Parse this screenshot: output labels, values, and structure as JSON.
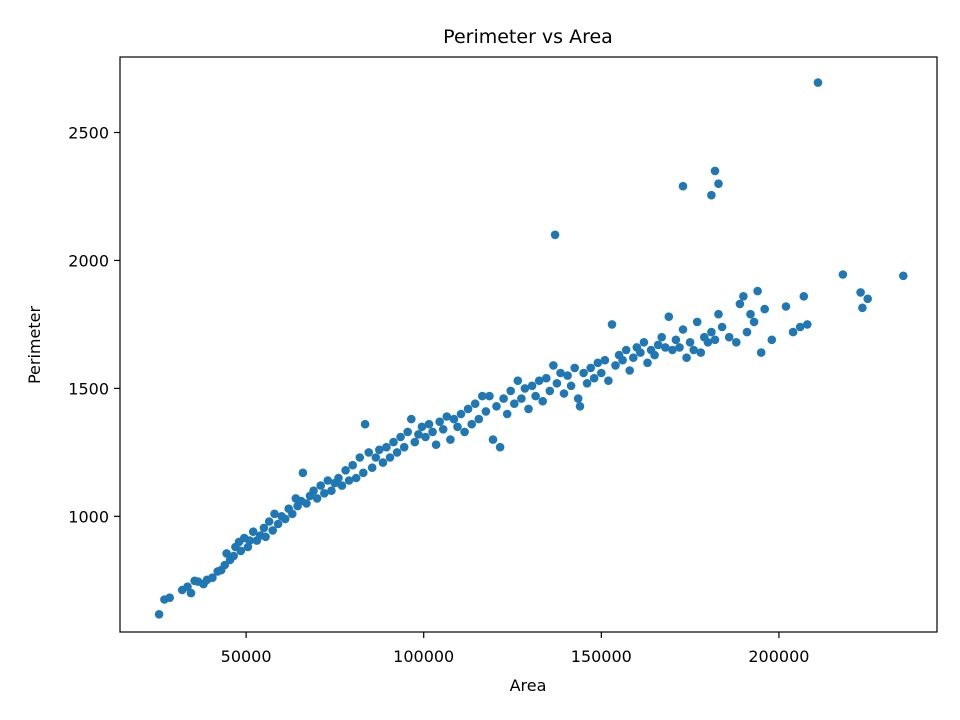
{
  "chart_data": {
    "type": "scatter",
    "title": "Perimeter vs Area",
    "xlabel": "Area",
    "ylabel": "Perimeter",
    "xlim": [
      14500,
      244500
    ],
    "ylim": [
      548,
      2795
    ],
    "xticks": [
      50000,
      100000,
      150000,
      200000
    ],
    "yticks": [
      1000,
      1500,
      2000,
      2500
    ],
    "grid": false,
    "color": "#1f77b4",
    "series": [
      {
        "points": [
          [
            25500,
            617
          ],
          [
            27000,
            675
          ],
          [
            28500,
            682
          ],
          [
            32000,
            712
          ],
          [
            33500,
            725
          ],
          [
            34500,
            700
          ],
          [
            35500,
            748
          ],
          [
            36500,
            745
          ],
          [
            38000,
            735
          ],
          [
            39000,
            752
          ],
          [
            40500,
            760
          ],
          [
            42000,
            785
          ],
          [
            43000,
            790
          ],
          [
            44000,
            810
          ],
          [
            44500,
            855
          ],
          [
            45500,
            830
          ],
          [
            46500,
            845
          ],
          [
            47000,
            880
          ],
          [
            48000,
            900
          ],
          [
            48500,
            865
          ],
          [
            49500,
            915
          ],
          [
            50500,
            880
          ],
          [
            51000,
            905
          ],
          [
            52000,
            940
          ],
          [
            53000,
            905
          ],
          [
            54000,
            925
          ],
          [
            55000,
            955
          ],
          [
            55500,
            920
          ],
          [
            56500,
            980
          ],
          [
            57500,
            945
          ],
          [
            58000,
            1010
          ],
          [
            59000,
            970
          ],
          [
            60000,
            1000
          ],
          [
            61000,
            990
          ],
          [
            62000,
            1030
          ],
          [
            63000,
            1010
          ],
          [
            64000,
            1070
          ],
          [
            64500,
            1040
          ],
          [
            65500,
            1060
          ],
          [
            66000,
            1170
          ],
          [
            67000,
            1050
          ],
          [
            68000,
            1080
          ],
          [
            69000,
            1100
          ],
          [
            70000,
            1070
          ],
          [
            71000,
            1120
          ],
          [
            72000,
            1090
          ],
          [
            73000,
            1140
          ],
          [
            74000,
            1100
          ],
          [
            75000,
            1130
          ],
          [
            76000,
            1150
          ],
          [
            77000,
            1120
          ],
          [
            78000,
            1180
          ],
          [
            79000,
            1140
          ],
          [
            80000,
            1200
          ],
          [
            81000,
            1150
          ],
          [
            82000,
            1230
          ],
          [
            83000,
            1170
          ],
          [
            83500,
            1360
          ],
          [
            84500,
            1250
          ],
          [
            85500,
            1190
          ],
          [
            86500,
            1230
          ],
          [
            87500,
            1260
          ],
          [
            88500,
            1210
          ],
          [
            89500,
            1270
          ],
          [
            90500,
            1230
          ],
          [
            91500,
            1290
          ],
          [
            92500,
            1250
          ],
          [
            93500,
            1310
          ],
          [
            94500,
            1270
          ],
          [
            95500,
            1330
          ],
          [
            96500,
            1380
          ],
          [
            97500,
            1290
          ],
          [
            98500,
            1320
          ],
          [
            99500,
            1350
          ],
          [
            100500,
            1310
          ],
          [
            101500,
            1360
          ],
          [
            102500,
            1330
          ],
          [
            103500,
            1280
          ],
          [
            104500,
            1370
          ],
          [
            105500,
            1340
          ],
          [
            106500,
            1390
          ],
          [
            107500,
            1300
          ],
          [
            108500,
            1380
          ],
          [
            109500,
            1350
          ],
          [
            110500,
            1400
          ],
          [
            111500,
            1330
          ],
          [
            112500,
            1420
          ],
          [
            113500,
            1360
          ],
          [
            114500,
            1440
          ],
          [
            115500,
            1380
          ],
          [
            116500,
            1470
          ],
          [
            117500,
            1410
          ],
          [
            118500,
            1470
          ],
          [
            119500,
            1300
          ],
          [
            120500,
            1430
          ],
          [
            121500,
            1270
          ],
          [
            122500,
            1460
          ],
          [
            123500,
            1400
          ],
          [
            124500,
            1490
          ],
          [
            125500,
            1440
          ],
          [
            126500,
            1530
          ],
          [
            127500,
            1460
          ],
          [
            128500,
            1500
          ],
          [
            129500,
            1420
          ],
          [
            130500,
            1510
          ],
          [
            131500,
            1470
          ],
          [
            132500,
            1530
          ],
          [
            133500,
            1450
          ],
          [
            134500,
            1540
          ],
          [
            135500,
            1490
          ],
          [
            136500,
            1590
          ],
          [
            137500,
            1520
          ],
          [
            138500,
            1560
          ],
          [
            139500,
            1480
          ],
          [
            140500,
            1550
          ],
          [
            141500,
            1510
          ],
          [
            142500,
            1580
          ],
          [
            143500,
            1460
          ],
          [
            144000,
            1430
          ],
          [
            145000,
            1560
          ],
          [
            146000,
            1520
          ],
          [
            147000,
            1580
          ],
          [
            148000,
            1540
          ],
          [
            149000,
            1600
          ],
          [
            150000,
            1560
          ],
          [
            151000,
            1610
          ],
          [
            152000,
            1530
          ],
          [
            153000,
            1750
          ],
          [
            154000,
            1590
          ],
          [
            155000,
            1630
          ],
          [
            156000,
            1610
          ],
          [
            157000,
            1650
          ],
          [
            158000,
            1570
          ],
          [
            159000,
            1620
          ],
          [
            160000,
            1660
          ],
          [
            161000,
            1640
          ],
          [
            162000,
            1680
          ],
          [
            163000,
            1600
          ],
          [
            164000,
            1650
          ],
          [
            165000,
            1630
          ],
          [
            166000,
            1670
          ],
          [
            167000,
            1700
          ],
          [
            168000,
            1660
          ],
          [
            169000,
            1780
          ],
          [
            170000,
            1650
          ],
          [
            171000,
            1690
          ],
          [
            172000,
            1660
          ],
          [
            173000,
            1730
          ],
          [
            174000,
            1620
          ],
          [
            175000,
            1680
          ],
          [
            176000,
            1650
          ],
          [
            177000,
            1760
          ],
          [
            178000,
            1640
          ],
          [
            179000,
            1700
          ],
          [
            180000,
            1680
          ],
          [
            181000,
            1720
          ],
          [
            182000,
            1690
          ],
          [
            183000,
            1790
          ],
          [
            184000,
            1740
          ],
          [
            186000,
            1700
          ],
          [
            188000,
            1680
          ],
          [
            189000,
            1830
          ],
          [
            190000,
            1860
          ],
          [
            191000,
            1720
          ],
          [
            192000,
            1790
          ],
          [
            193000,
            1760
          ],
          [
            194000,
            1880
          ],
          [
            195000,
            1640
          ],
          [
            196000,
            1810
          ],
          [
            198000,
            1690
          ],
          [
            202000,
            1820
          ],
          [
            204000,
            1720
          ],
          [
            206000,
            1740
          ],
          [
            207000,
            1860
          ],
          [
            208000,
            1750
          ],
          [
            218000,
            1945
          ],
          [
            223000,
            1875
          ],
          [
            223500,
            1815
          ],
          [
            225000,
            1850
          ],
          [
            235000,
            1940
          ],
          [
            137000,
            2100
          ],
          [
            173000,
            2290
          ],
          [
            181000,
            2255
          ],
          [
            182000,
            2350
          ],
          [
            183000,
            2300
          ],
          [
            211000,
            2695
          ]
        ]
      }
    ]
  }
}
